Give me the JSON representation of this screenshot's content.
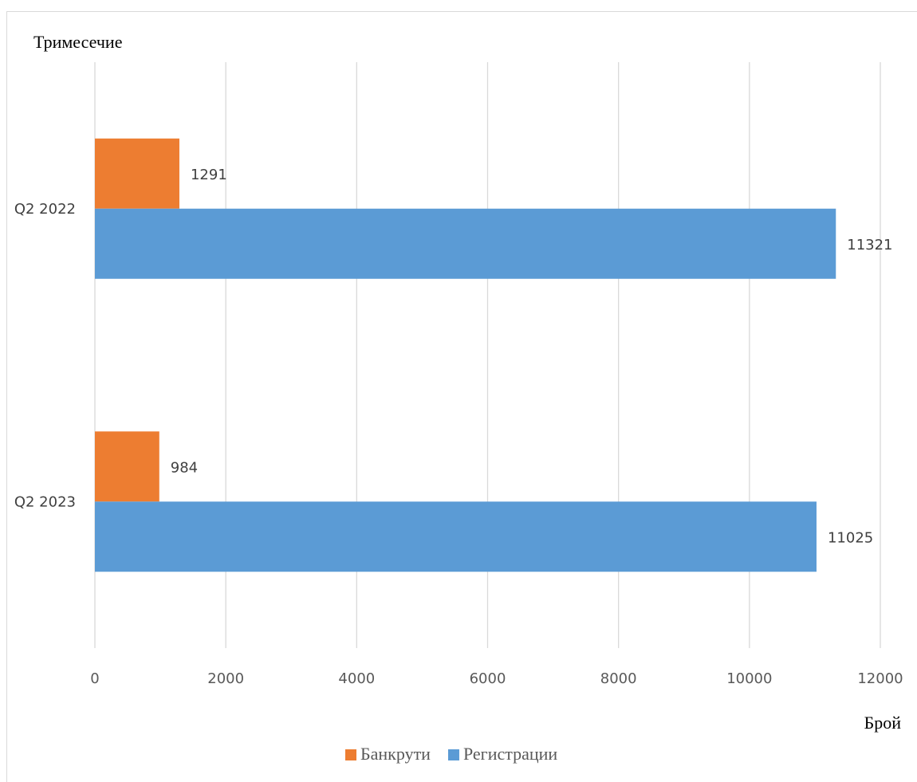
{
  "chart_data": {
    "type": "bar",
    "orientation": "horizontal",
    "title": "",
    "ylabel": "Тримесечие",
    "xlabel": "Брой",
    "categories": [
      "Q2 2022",
      "Q2 2023"
    ],
    "series": [
      {
        "name": "Банкрути",
        "values": [
          1291,
          984
        ],
        "color": "#ed7d31"
      },
      {
        "name": "Регистрации",
        "values": [
          11321,
          11025
        ],
        "color": "#5b9bd5"
      }
    ],
    "xlim": [
      0,
      12000
    ],
    "xticks": [
      "0",
      "2000",
      "4000",
      "6000",
      "8000",
      "10000",
      "12000"
    ],
    "data_labels": true,
    "grid": "vertical",
    "legend_position": "bottom"
  }
}
